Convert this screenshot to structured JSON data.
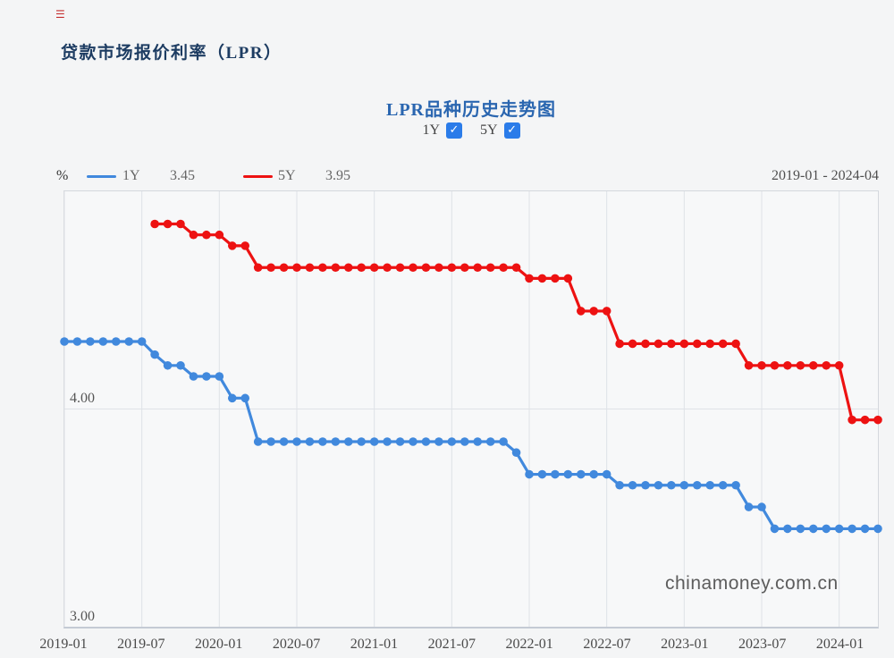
{
  "page": {
    "background": "#f4f5f6"
  },
  "header": {
    "title": "贷款市场报价利率（LPR）",
    "logo_icon": "☰"
  },
  "icons": {
    "checkmark": "✓"
  },
  "chart": {
    "title": "LPR品种历史走势图",
    "toggles": [
      {
        "label": "1Y",
        "checked": true
      },
      {
        "label": "5Y",
        "checked": true
      }
    ],
    "unit_label": "%",
    "legend": [
      {
        "label": "1Y",
        "value": "3.45",
        "color": "#4189dd"
      },
      {
        "label": "5Y",
        "value": "3.95",
        "color": "#ed1212"
      }
    ],
    "date_range": "2019-01 - 2024-04",
    "y_axis_labels": [
      "4.00",
      "3.00"
    ],
    "watermark": "chinamoney.com.cn"
  },
  "chart_data": {
    "type": "line",
    "title": "LPR品种历史走势图",
    "unit": "%",
    "x_range": [
      "2019-01",
      "2024-04"
    ],
    "x_ticks": [
      "2019-01",
      "2019-07",
      "2020-01",
      "2020-07",
      "2021-01",
      "2021-07",
      "2022-01",
      "2022-07",
      "2023-01",
      "2023-07",
      "2024-01"
    ],
    "ylim": [
      3.0,
      5.0
    ],
    "y_gridlines": [
      3.0,
      4.0,
      5.0
    ],
    "grid_on": true,
    "grid_color": "#dfe2e7",
    "legend_position": "top-left",
    "series": [
      {
        "name": "1Y",
        "color": "#4189dd",
        "latest_value": 3.45,
        "start_month": "2019-01",
        "values": [
          4.31,
          4.31,
          4.31,
          4.31,
          4.31,
          4.31,
          4.31,
          4.25,
          4.2,
          4.2,
          4.15,
          4.15,
          4.15,
          4.05,
          4.05,
          3.85,
          3.85,
          3.85,
          3.85,
          3.85,
          3.85,
          3.85,
          3.85,
          3.85,
          3.85,
          3.85,
          3.85,
          3.85,
          3.85,
          3.85,
          3.85,
          3.85,
          3.85,
          3.85,
          3.85,
          3.8,
          3.7,
          3.7,
          3.7,
          3.7,
          3.7,
          3.7,
          3.7,
          3.65,
          3.65,
          3.65,
          3.65,
          3.65,
          3.65,
          3.65,
          3.65,
          3.65,
          3.65,
          3.55,
          3.55,
          3.45,
          3.45,
          3.45,
          3.45,
          3.45,
          3.45,
          3.45,
          3.45,
          3.45
        ]
      },
      {
        "name": "5Y",
        "color": "#ed1212",
        "latest_value": 3.95,
        "start_month": "2019-08",
        "values": [
          4.85,
          4.85,
          4.85,
          4.8,
          4.8,
          4.8,
          4.75,
          4.75,
          4.65,
          4.65,
          4.65,
          4.65,
          4.65,
          4.65,
          4.65,
          4.65,
          4.65,
          4.65,
          4.65,
          4.65,
          4.65,
          4.65,
          4.65,
          4.65,
          4.65,
          4.65,
          4.65,
          4.65,
          4.65,
          4.6,
          4.6,
          4.6,
          4.6,
          4.45,
          4.45,
          4.45,
          4.3,
          4.3,
          4.3,
          4.3,
          4.3,
          4.3,
          4.3,
          4.3,
          4.3,
          4.3,
          4.2,
          4.2,
          4.2,
          4.2,
          4.2,
          4.2,
          4.2,
          4.2,
          3.95,
          3.95,
          3.95
        ]
      }
    ]
  }
}
